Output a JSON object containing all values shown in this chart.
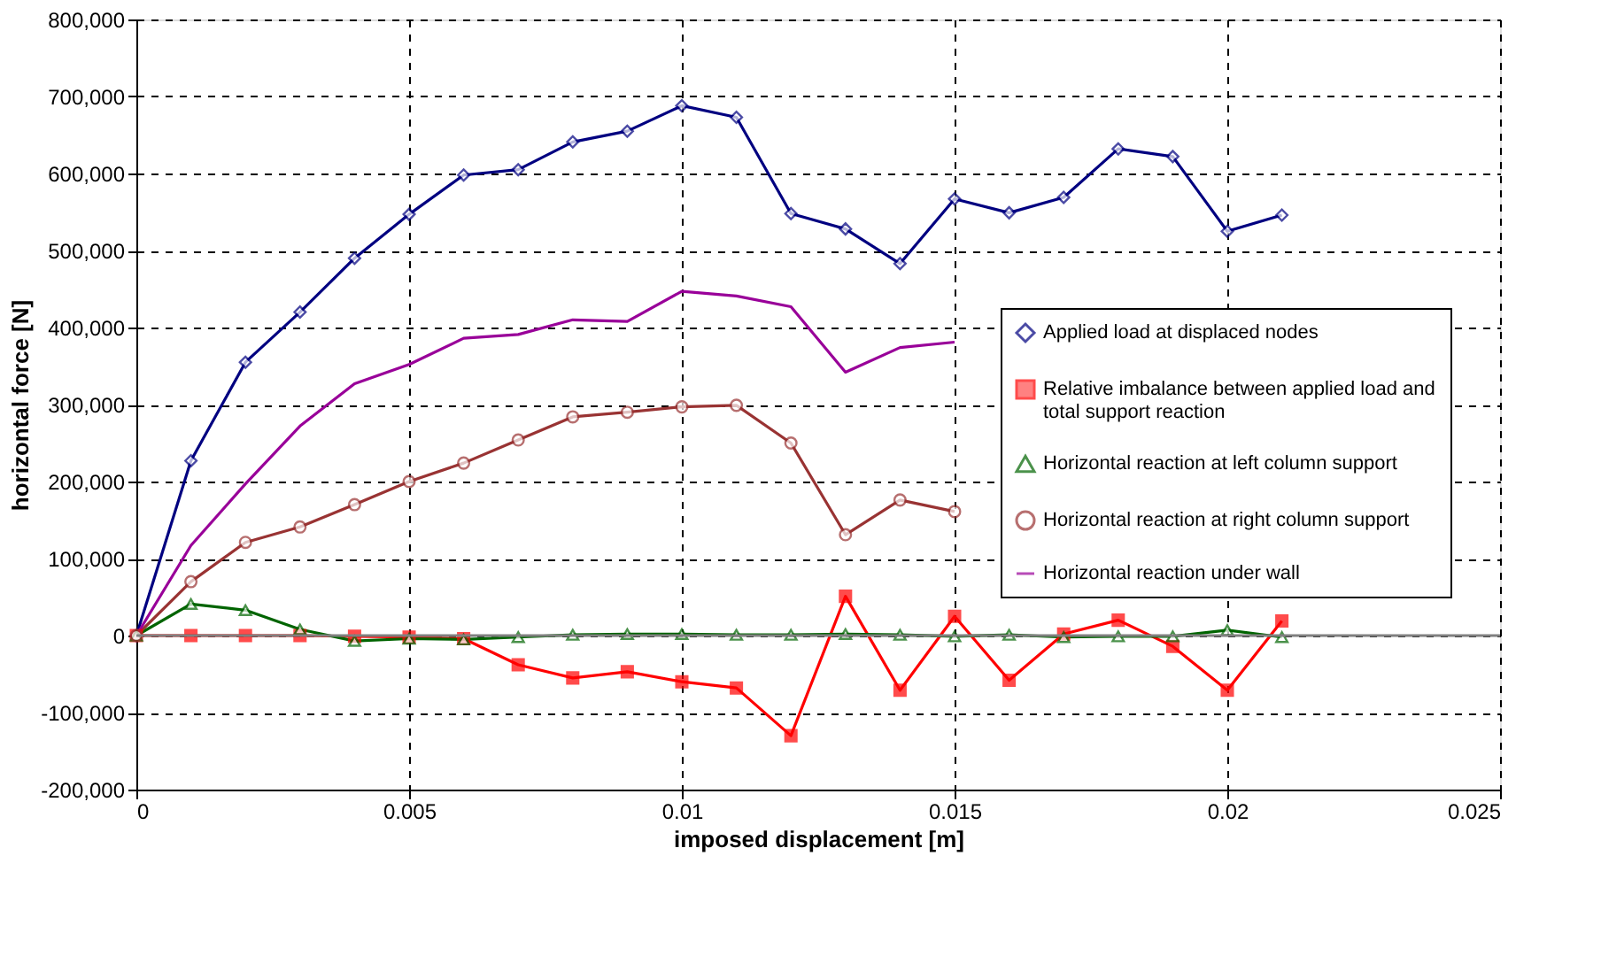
{
  "chart_data": {
    "type": "line",
    "xlabel": "imposed displacement [m]",
    "ylabel": "horizontal force [N]",
    "x": [
      0,
      0.001,
      0.002,
      0.003,
      0.004,
      0.005,
      0.006,
      0.007,
      0.008,
      0.009,
      0.01,
      0.011,
      0.012,
      0.013,
      0.014,
      0.015,
      0.016,
      0.017,
      0.018,
      0.019,
      0.02,
      0.021
    ],
    "series": [
      {
        "name": "Applied load at displaced nodes",
        "color": "#000080",
        "marker": "diamond",
        "values": [
          0,
          227000,
          355000,
          420000,
          490000,
          547000,
          598000,
          605000,
          641000,
          655000,
          688000,
          673000,
          548000,
          528000,
          483000,
          567000,
          549000,
          569000,
          632000,
          622000,
          525000,
          546000
        ]
      },
      {
        "name": "Relative imbalance between applied load and total support reaction",
        "color": "#ff0000",
        "marker": "square",
        "values": [
          0,
          0,
          0,
          0,
          -1000,
          -2000,
          -4000,
          -38000,
          -55000,
          -47000,
          -60000,
          -68000,
          -130000,
          51000,
          -71000,
          25000,
          -58000,
          2000,
          20000,
          -14000,
          -71000,
          19000
        ]
      },
      {
        "name": "Horizontal reaction at left column support",
        "color": "#006400",
        "marker": "triangle",
        "values": [
          0,
          41000,
          33000,
          8000,
          -7000,
          -4000,
          -5000,
          -2000,
          1000,
          2000,
          2000,
          1000,
          1000,
          2000,
          1000,
          -1000,
          1000,
          -2000,
          -1000,
          -1000,
          7000,
          -2000
        ]
      },
      {
        "name": "Horizontal reaction at right column support",
        "color": "#993333",
        "marker": "circle",
        "values": [
          0,
          70000,
          121000,
          141000,
          170000,
          200000,
          224000,
          254000,
          284000,
          290000,
          297000,
          299000,
          250000,
          131000,
          176000,
          161000,
          null,
          null,
          null,
          null,
          null,
          null
        ]
      },
      {
        "name": "Horizontal reaction under wall",
        "color": "#990099",
        "marker": "none",
        "values": [
          0,
          117000,
          197000,
          272000,
          327000,
          352000,
          386000,
          391000,
          410000,
          408000,
          447000,
          441000,
          427000,
          342000,
          374000,
          381000,
          null,
          null,
          null,
          null,
          null,
          null
        ]
      }
    ],
    "xlim": [
      0,
      0.025
    ],
    "xticks": [
      0,
      0.005,
      0.01,
      0.015,
      0.02,
      0.025
    ],
    "ylim": [
      -200000,
      800000
    ],
    "yticks": [
      {
        "value": -200000,
        "label": "-200,000"
      },
      {
        "value": -100000,
        "label": "-100,000"
      },
      0,
      {
        "value": 100000,
        "label": "100,000"
      },
      {
        "value": 200000,
        "label": "200,000"
      },
      {
        "value": 300000,
        "label": "300,000"
      },
      {
        "value": 400000,
        "label": "400,000"
      },
      {
        "value": 500000,
        "label": "500,000"
      },
      {
        "value": 600000,
        "label": "600,000"
      },
      {
        "value": 700000,
        "label": "700,000"
      },
      {
        "value": 800000,
        "label": "800,000"
      }
    ],
    "ref_lines": [
      {
        "axis": "y",
        "value": 0,
        "color": "#808080"
      }
    ],
    "grid": true,
    "legend": "right",
    "line_style": "solid"
  }
}
